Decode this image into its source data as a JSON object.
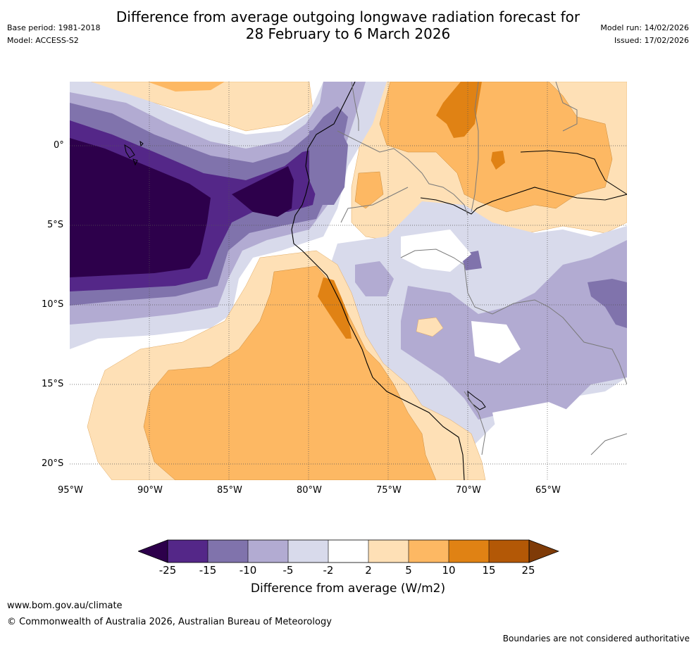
{
  "title": {
    "line1": "Difference from average outgoing longwave radiation forecast for",
    "line2": "28 February to 6 March 2026"
  },
  "meta": {
    "base_period": "Base period: 1981-2018",
    "model": "Model: ACCESS-S2",
    "model_run": "Model run: 14/02/2026",
    "issued": "Issued: 17/02/2026"
  },
  "map": {
    "lat_labels": [
      "0°",
      "5°S",
      "10°S",
      "15°S",
      "20°S"
    ],
    "lon_labels": [
      "95°W",
      "90°W",
      "85°W",
      "80°W",
      "75°W",
      "70°W",
      "65°W"
    ],
    "colors": {
      "deep_purple": "#2d004b",
      "dark_purple": "#542788",
      "mid_purple": "#8073ac",
      "light_purple": "#b2abd2",
      "pale_purple": "#d8daeb",
      "white": "#ffffff",
      "pale_orange": "#fee0b6",
      "light_orange": "#fdb863",
      "orange": "#e08214",
      "dark_orange": "#b35806",
      "brown": "#7f3b08"
    }
  },
  "colorbar": {
    "ticks": [
      "-25",
      "-15",
      "-10",
      "-5",
      "-2",
      "2",
      "5",
      "10",
      "15",
      "25"
    ],
    "label": "Difference from average (W/m2)"
  },
  "footer": {
    "url": "www.bom.gov.au/climate",
    "copyright": "© Commonwealth of Australia 2026, Australian Bureau of Meteorology",
    "disclaimer": "Boundaries are not considered authoritative"
  }
}
